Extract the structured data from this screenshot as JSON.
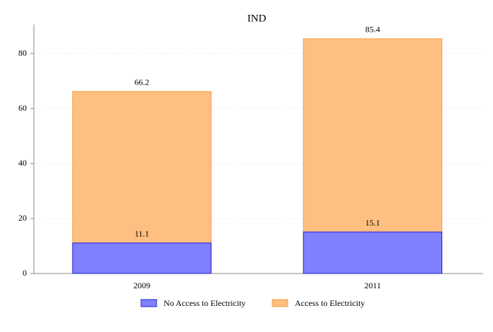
{
  "chart_data": {
    "type": "bar",
    "title": "IND",
    "categories": [
      "2009",
      "2011"
    ],
    "series": [
      {
        "name": "Access to Electricity",
        "color": "#ffbf80",
        "values": [
          66.2,
          85.4
        ]
      },
      {
        "name": "No Access to Electricity",
        "color": "#8080ff",
        "values": [
          11.1,
          15.1
        ]
      }
    ],
    "legend_order": [
      1,
      0
    ],
    "ylim": [
      0,
      88
    ],
    "yticks": [
      0,
      20,
      40,
      60,
      80
    ],
    "grid": true
  }
}
